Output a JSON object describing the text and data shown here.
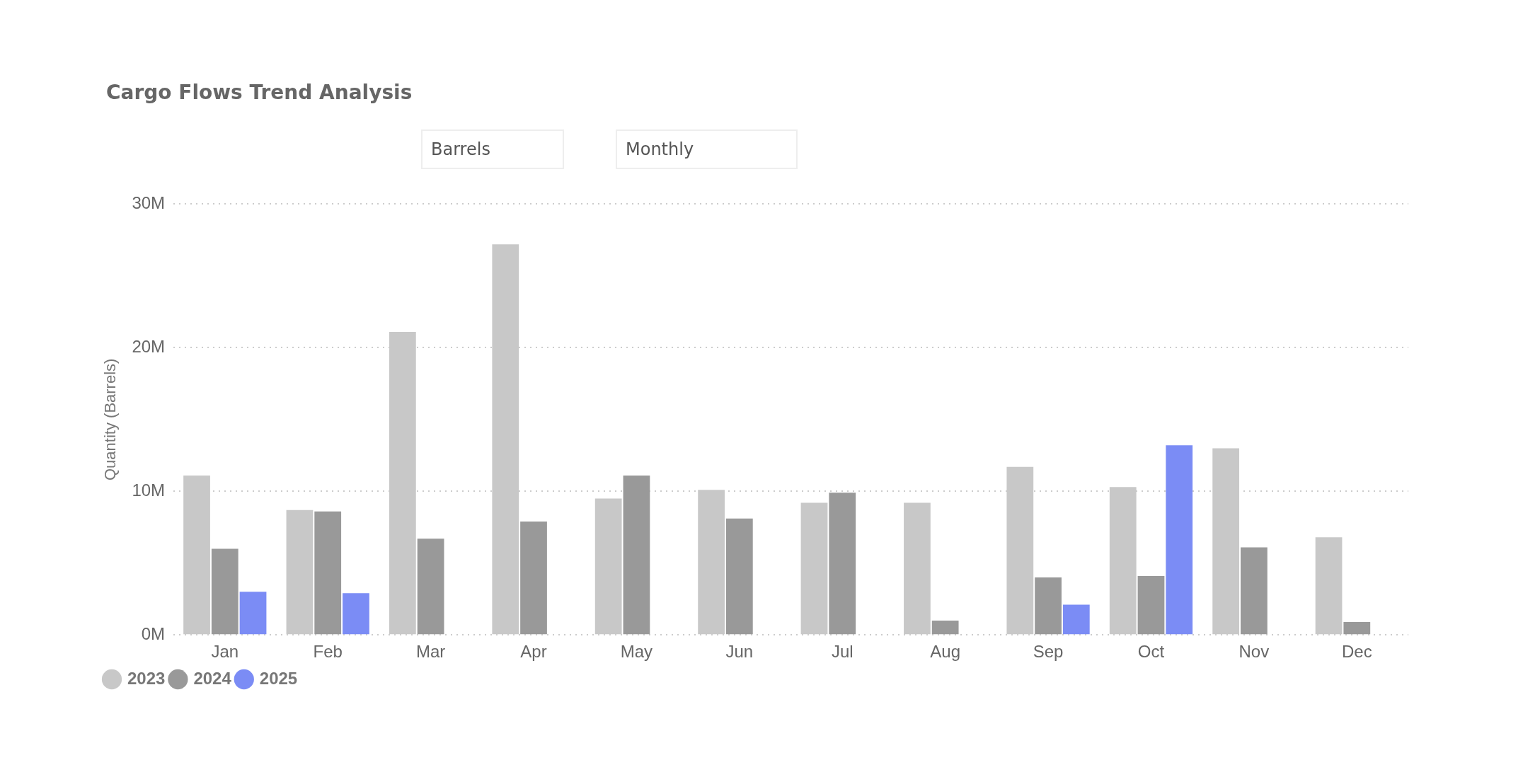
{
  "chart_data": {
    "type": "bar",
    "title": "Cargo Flows Trend Analysis",
    "ylabel": "Quantity (Barrels)",
    "annotations": [
      "Barrels",
      "Monthly"
    ],
    "categories": [
      "Jan",
      "Feb",
      "Mar",
      "Apr",
      "May",
      "Jun",
      "Jul",
      "Aug",
      "Sep",
      "Oct",
      "Nov",
      "Dec"
    ],
    "series": [
      {
        "name": "2023",
        "color": "#c8c8c8",
        "values": [
          11.1,
          8.7,
          21.1,
          27.2,
          9.5,
          10.1,
          9.2,
          9.2,
          11.7,
          10.3,
          13.0,
          6.8
        ]
      },
      {
        "name": "2024",
        "color": "#999999",
        "values": [
          6.0,
          8.6,
          6.7,
          7.9,
          11.1,
          8.1,
          9.9,
          1.0,
          4.0,
          4.1,
          6.1,
          0.9
        ]
      },
      {
        "name": "2025",
        "color": "#7b8cf5",
        "values": [
          3.0,
          2.9,
          null,
          null,
          null,
          null,
          null,
          null,
          2.1,
          13.2,
          null,
          null
        ]
      }
    ],
    "ylim": [
      0,
      30
    ],
    "yticks": [
      {
        "value": 0,
        "label": "0M"
      },
      {
        "value": 10,
        "label": "10M"
      },
      {
        "value": 20,
        "label": "20M"
      },
      {
        "value": 30,
        "label": "30M"
      }
    ],
    "grid": "y",
    "legend": "bottom left"
  }
}
